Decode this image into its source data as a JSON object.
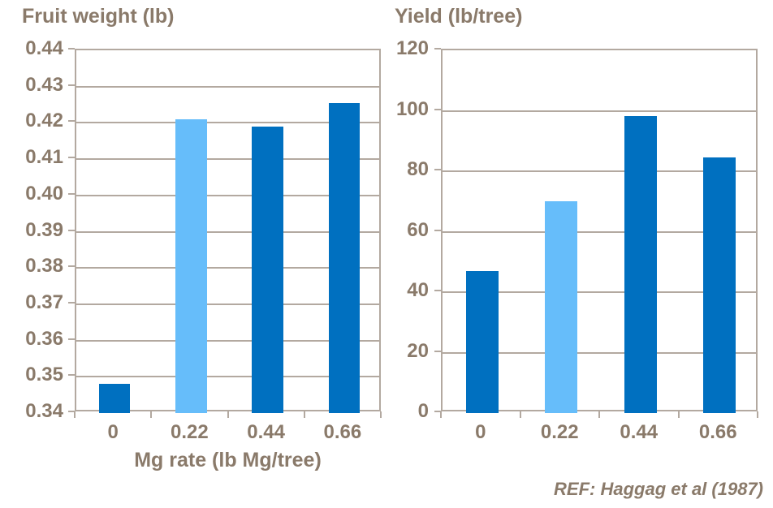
{
  "footer": {
    "ref": "REF: Haggag et al (1987)"
  },
  "colors": {
    "bar_default": "#0070C0",
    "bar_highlight": "#66BDFA",
    "text": "#8A7A6A",
    "axis_line": "#B3A9A0"
  },
  "chart_data": [
    {
      "type": "bar",
      "title": "Fruit weight (lb)",
      "xlabel": "Mg rate (lb Mg/tree)",
      "ylabel": "",
      "categories": [
        "0",
        "0.22",
        "0.44",
        "0.66"
      ],
      "values": [
        0.348,
        0.421,
        0.419,
        0.4255
      ],
      "highlight_index": 1,
      "ylim": [
        0.34,
        0.44
      ],
      "ytick_step": 0.01,
      "ytick_decimals": 2,
      "grid": true,
      "legend": "none"
    },
    {
      "type": "bar",
      "title": "Yield (lb/tree)",
      "xlabel": "",
      "ylabel": "",
      "categories": [
        "0",
        "0.22",
        "0.44",
        "0.66"
      ],
      "values": [
        47,
        70,
        98.3,
        84.5
      ],
      "highlight_index": 1,
      "ylim": [
        0,
        120
      ],
      "ytick_step": 20,
      "ytick_decimals": 0,
      "grid": true,
      "legend": "none"
    }
  ]
}
